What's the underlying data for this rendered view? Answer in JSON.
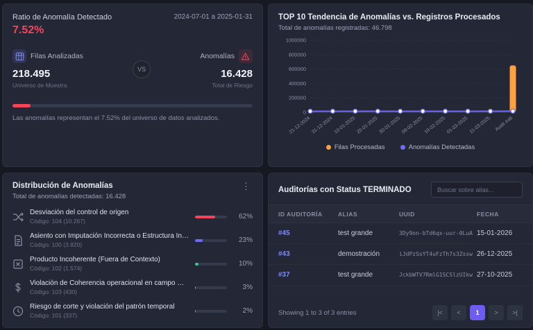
{
  "theme": {
    "bg": "#161822",
    "panel": "#242736",
    "accent_red": "#f2455c",
    "accent_orange": "#ffa040",
    "accent_purple": "#6f6af8",
    "accent_green": "#2ece8d"
  },
  "ratio_panel": {
    "title": "Ratio de Anomalía Detectado",
    "date_range": "2024-07-01 a 2025-01-31",
    "ratio": "7.52%",
    "rows_label": "Filas Analizadas",
    "rows_value": "218.495",
    "rows_sub": "Universo de Muestra",
    "vs_label": "VS",
    "anomalies_label": "Anomalías",
    "anomalies_value": "16.428",
    "anomalies_sub": "Total de Riesgo",
    "progress_pct": 7.52,
    "caption": "Las anomalías representan el 7.52% del universo de datos analizados."
  },
  "trend_panel": {
    "title": "TOP 10 Tendencia de Anomalías vs. Registros Procesados",
    "subtitle": "Total de anomalías registradas: 46.798",
    "legend": [
      {
        "label": "Filas Procesadas",
        "color": "#ffa040"
      },
      {
        "label": "Anomalías Detectadas",
        "color": "#6f6af8"
      }
    ]
  },
  "chart_data": {
    "type": "line",
    "title": "TOP 10 Tendencia de Anomalías vs. Registros Procesados",
    "x": [
      "21-12-2024",
      "31-12-2024",
      "10-01-2025",
      "20-01-2025",
      "30-01-2025",
      "09-02-2025",
      "19-02-2025",
      "01-03-2025",
      "11-03-2025",
      "Audit #46"
    ],
    "series": [
      {
        "name": "Filas Procesadas",
        "render": "bar",
        "color": "#ffa040",
        "values": [
          0,
          0,
          0,
          0,
          0,
          0,
          0,
          0,
          0,
          650000
        ]
      },
      {
        "name": "Anomalías Detectadas",
        "render": "line",
        "color": "#6f6af8",
        "values": [
          15000,
          15000,
          15000,
          15000,
          15000,
          15000,
          15000,
          15000,
          15000,
          16428
        ]
      }
    ],
    "ylim": [
      0,
      1000000
    ],
    "yticks": [
      0,
      200000,
      400000,
      600000,
      800000,
      1000000
    ],
    "grid": true,
    "legend_position": "bottom"
  },
  "distribution_panel": {
    "title": "Distribución de Anomalías",
    "subtitle": "Total de anomalías detectadas: 16.428",
    "items": [
      {
        "icon": "deviation-icon",
        "name": "Desviación del control de origen",
        "code": "Código: 104 (10.267)",
        "pct": 62,
        "pct_label": "62%",
        "color": "#f2455c"
      },
      {
        "icon": "document-icon",
        "name": "Asiento con Imputación Incorrecta o Estructura Inválida",
        "code": "Código: 100 (3.820)",
        "pct": 23,
        "pct_label": "23%",
        "color": "#6f6af8"
      },
      {
        "icon": "box-x-icon",
        "name": "Producto Incoherente (Fuera de Contexto)",
        "code": "Código: 102 (1.574)",
        "pct": 10,
        "pct_label": "10%",
        "color": "#2ece8d"
      },
      {
        "icon": "dollar-icon",
        "name": "Violación de Coherencia operacional en campo Moneda",
        "code": "Código: 103 (430)",
        "pct": 3,
        "pct_label": "3%",
        "color": "#9aa0b5"
      },
      {
        "icon": "clock-icon",
        "name": "Riesgo de corte y violación del patrón temporal",
        "code": "Código: 101 (337)",
        "pct": 2,
        "pct_label": "2%",
        "color": "#9aa0b5"
      }
    ]
  },
  "audits_panel": {
    "title": "Auditorías con Status TERMINADO",
    "search_placeholder": "Buscar sobre alias...",
    "columns": [
      "ID Auditoría",
      "Alias",
      "UUID",
      "Fecha"
    ],
    "rows": [
      {
        "id": "#45",
        "alias": "test grande",
        "uuid": "3Dy9on-bTd6qx-uur-0LuA",
        "fecha": "15-01-2026"
      },
      {
        "id": "#43",
        "alias": "demostración",
        "uuid": "iJdPzSsYT4uFzTh7s3Zssw",
        "fecha": "26-12-2025"
      },
      {
        "id": "#37",
        "alias": "test grande",
        "uuid": "JckbWTV7RmlG1SCSlzUIkw",
        "fecha": "27-10-2025"
      }
    ],
    "footer": "Showing 1 to 3 of 3 entries",
    "pagination": [
      {
        "label": "|<"
      },
      {
        "label": "<"
      },
      {
        "label": "1"
      },
      {
        "label": ">"
      },
      {
        "label": ">|"
      }
    ]
  }
}
